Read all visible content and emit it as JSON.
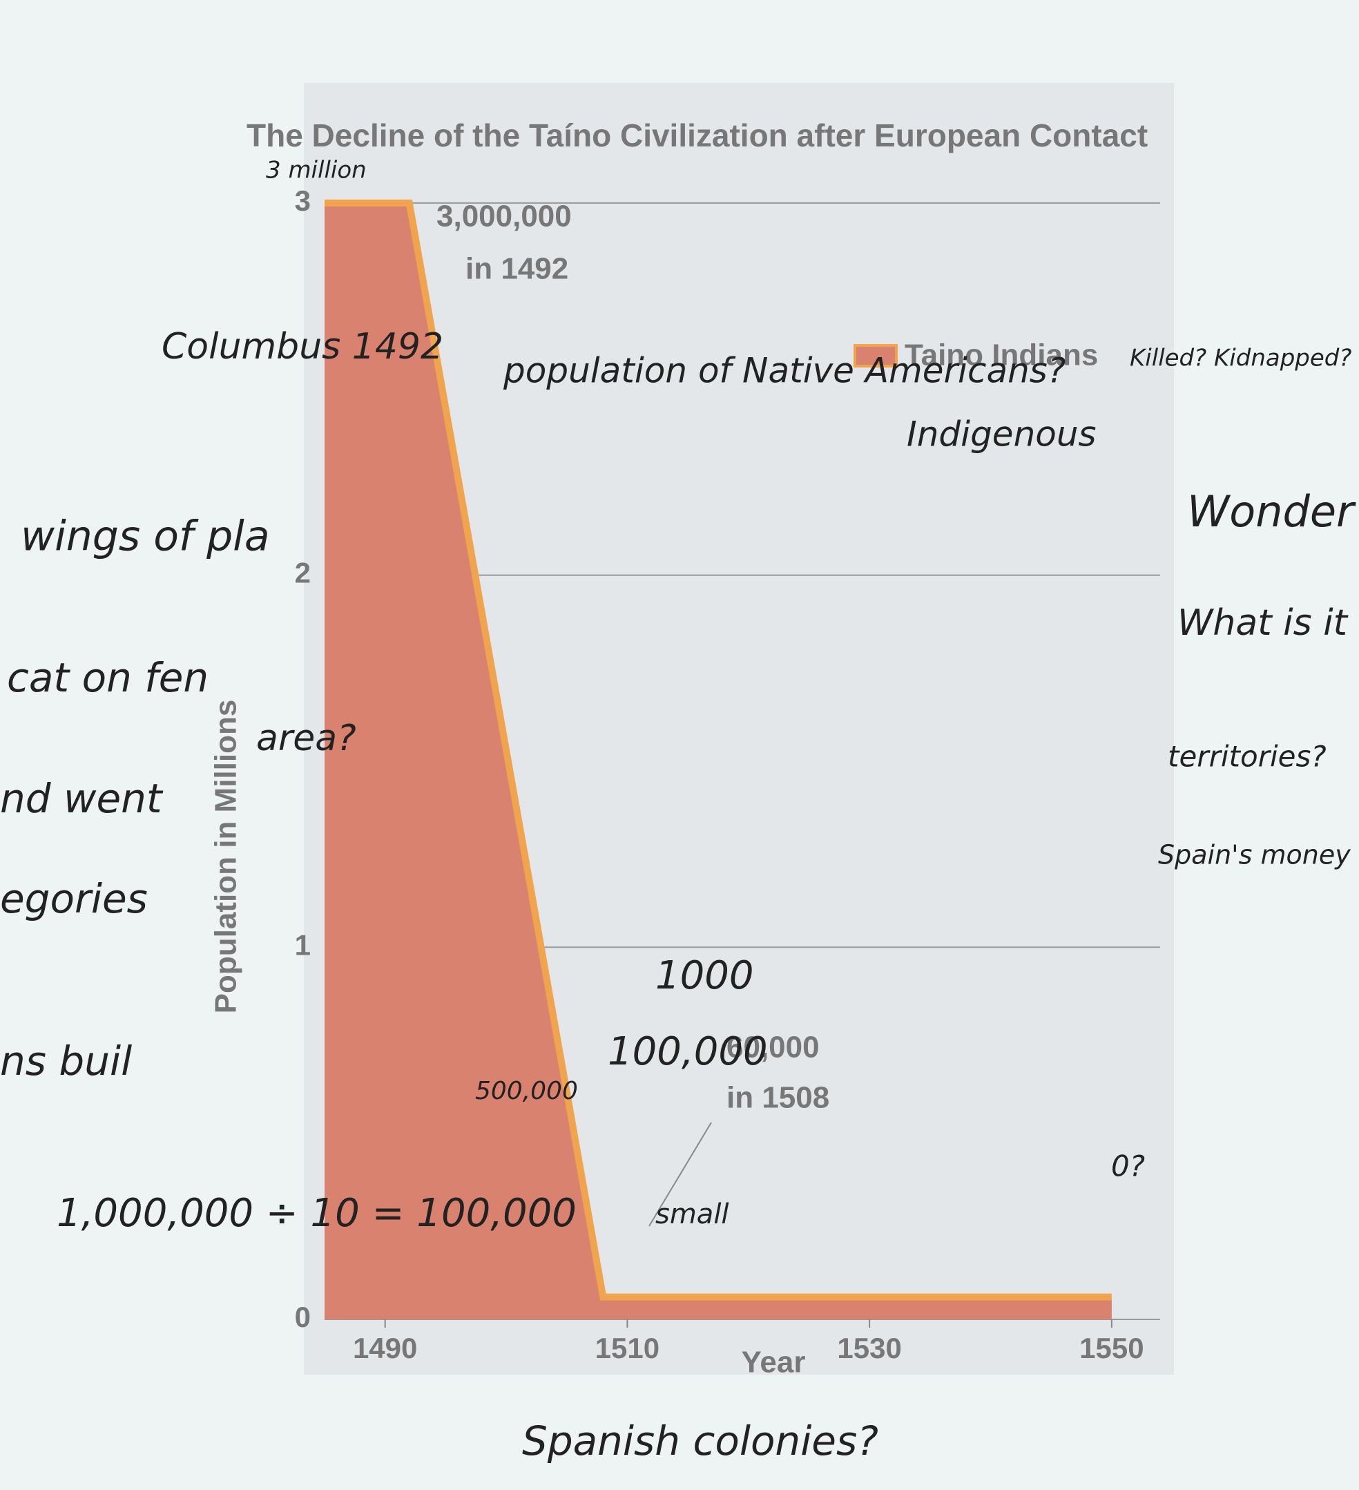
{
  "chart_data": {
    "type": "area",
    "title": "The Decline of the Taíno Civilization after European Contact",
    "y_label": "Population in Millions",
    "x_label": "Year",
    "x": [
      1485,
      1492,
      1508,
      1550
    ],
    "series": [
      {
        "name": "Taino Indians",
        "color": "#d9826f",
        "line_color": "#f0a44e",
        "values": [
          3,
          3,
          0.06,
          0.06
        ]
      }
    ],
    "xlim": [
      1485,
      1554
    ],
    "xticks": [
      1490,
      1510,
      1530,
      1550
    ],
    "ylim": [
      0,
      3.1
    ],
    "yticks": [
      0,
      1,
      2,
      3
    ],
    "grid": true,
    "legend": "top-right",
    "annotations": [
      "3,000,000",
      "in 1492",
      "60,000",
      "in 1508"
    ],
    "handwritten_notes": [
      "3 million",
      "Columbus 1492",
      "population of Native Americans?",
      "Indigenous",
      "Killed? Kidnapped?",
      "Wonder",
      "What is it about?",
      "territories?",
      "Spain's money going down",
      "1000",
      "100,000",
      "500,000",
      "1,000,000 ÷ 10 = 100,000",
      "small",
      "area?",
      "0?",
      "Spanish colonies?",
      "wings of pla",
      "cat on fen",
      "nd went",
      "egories",
      "ns buil"
    ]
  }
}
